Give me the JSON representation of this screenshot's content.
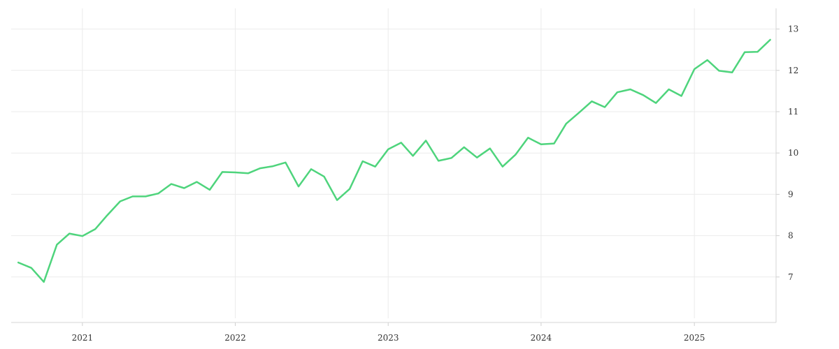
{
  "chart_data": {
    "type": "line",
    "title": "",
    "xlabel": "",
    "ylabel": "",
    "x_axis": {
      "type": "date",
      "range": [
        "2020-07-15",
        "2025-07-15"
      ],
      "ticks": [
        "2021-01-01",
        "2022-01-01",
        "2023-01-01",
        "2024-01-01",
        "2025-01-01"
      ],
      "tick_labels": [
        "2021",
        "2022",
        "2023",
        "2024",
        "2025"
      ]
    },
    "y_axis": {
      "side": "right",
      "range": [
        6,
        13.5
      ],
      "ticks": [
        7,
        8,
        9,
        10,
        11,
        12,
        13
      ],
      "tick_labels": [
        "7",
        "8",
        "9",
        "10",
        "11",
        "12",
        "13"
      ]
    },
    "grid": true,
    "legend": "none",
    "series": [
      {
        "color": "#4ed47c",
        "x": [
          "2020-08-01",
          "2020-09-01",
          "2020-10-01",
          "2020-11-01",
          "2020-12-01",
          "2021-01-01",
          "2021-02-01",
          "2021-03-01",
          "2021-04-01",
          "2021-05-01",
          "2021-06-01",
          "2021-07-01",
          "2021-08-01",
          "2021-09-01",
          "2021-10-01",
          "2021-11-01",
          "2021-12-01",
          "2022-01-01",
          "2022-02-01",
          "2022-03-01",
          "2022-04-01",
          "2022-05-01",
          "2022-06-01",
          "2022-07-01",
          "2022-08-01",
          "2022-09-01",
          "2022-10-01",
          "2022-11-01",
          "2022-12-01",
          "2023-01-01",
          "2023-02-01",
          "2023-03-01",
          "2023-04-01",
          "2023-05-01",
          "2023-06-01",
          "2023-07-01",
          "2023-08-01",
          "2023-09-01",
          "2023-10-01",
          "2023-11-01",
          "2023-12-01",
          "2024-01-01",
          "2024-02-01",
          "2024-03-01",
          "2024-04-01",
          "2024-05-01",
          "2024-06-01",
          "2024-07-01",
          "2024-08-01",
          "2024-09-01",
          "2024-10-01",
          "2024-11-01",
          "2024-12-01",
          "2025-01-01",
          "2025-02-01",
          "2025-03-01",
          "2025-04-01",
          "2025-05-01",
          "2025-06-01",
          "2025-07-01"
        ],
        "y": [
          7.35,
          7.22,
          6.88,
          7.78,
          8.05,
          7.99,
          8.16,
          8.49,
          8.83,
          8.95,
          8.95,
          9.02,
          9.25,
          9.15,
          9.3,
          9.11,
          9.54,
          9.53,
          9.51,
          9.63,
          9.68,
          9.77,
          9.19,
          9.61,
          9.43,
          8.86,
          9.13,
          9.8,
          9.67,
          10.09,
          10.25,
          9.93,
          10.3,
          9.81,
          9.88,
          10.14,
          9.89,
          10.11,
          9.67,
          9.96,
          10.37,
          10.21,
          10.23,
          10.71,
          10.98,
          11.25,
          11.11,
          11.47,
          11.54,
          11.4,
          11.21,
          11.54,
          11.38,
          12.03,
          12.25,
          11.99,
          11.95,
          12.44,
          12.45,
          12.74
        ]
      }
    ]
  }
}
